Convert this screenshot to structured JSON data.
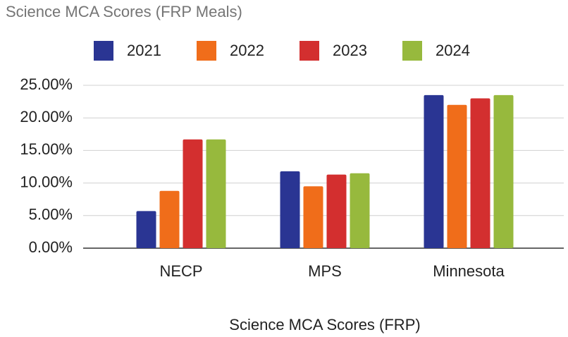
{
  "chart_data": {
    "type": "bar",
    "title": "Science MCA Scores (FRP Meals)",
    "x_label": "Science MCA Scores (FRP)",
    "categories": [
      "NECP",
      "MPS",
      "Minnesota"
    ],
    "series": [
      {
        "name": "2021",
        "color": "#2a3593",
        "values": [
          5.7,
          11.8,
          23.5
        ]
      },
      {
        "name": "2022",
        "color": "#f06d1a",
        "values": [
          8.8,
          9.5,
          22.0
        ]
      },
      {
        "name": "2023",
        "color": "#d32f2f",
        "values": [
          16.7,
          11.3,
          23.0
        ]
      },
      {
        "name": "2024",
        "color": "#97b93d",
        "values": [
          16.7,
          11.5,
          23.5
        ]
      }
    ],
    "ylim": [
      0,
      25
    ],
    "yticks": [
      {
        "value": 0,
        "label": "0.00%"
      },
      {
        "value": 5,
        "label": "5.00%"
      },
      {
        "value": 10,
        "label": "10.00%"
      },
      {
        "value": 15,
        "label": "15.00%"
      },
      {
        "value": 20,
        "label": "20.00%"
      },
      {
        "value": 25,
        "label": "25.00%"
      }
    ],
    "grid": true,
    "legend": "top"
  }
}
